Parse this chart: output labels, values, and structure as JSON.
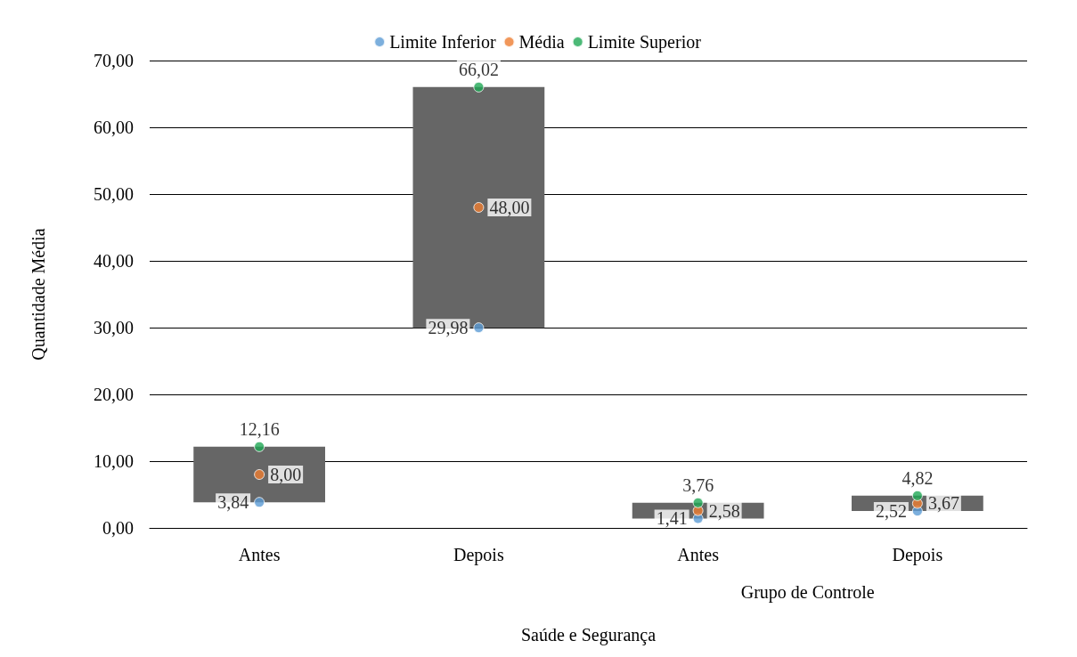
{
  "chart_data": {
    "type": "bar",
    "categories": [
      "Antes",
      "Depois",
      "Antes",
      "Depois"
    ],
    "ylabel": "Quantidade Média",
    "xlabel": "Saúde e Segurança",
    "annotations": [
      "Grupo de Controle"
    ],
    "ylim": [
      0,
      70
    ],
    "yticks": [
      {
        "value": 0,
        "label": "0,00"
      },
      {
        "value": 10,
        "label": "10,00"
      },
      {
        "value": 20,
        "label": "20,00"
      },
      {
        "value": 30,
        "label": "30,00"
      },
      {
        "value": 40,
        "label": "40,00"
      },
      {
        "value": 50,
        "label": "50,00"
      },
      {
        "value": 60,
        "label": "60,00"
      },
      {
        "value": 70,
        "label": "70,00"
      }
    ],
    "grid": "y",
    "legend": "top",
    "marker": "circle",
    "series": [
      {
        "color": "#666666",
        "base": [
          3.84,
          29.98,
          1.41,
          2.52
        ],
        "values": [
          8.32,
          36.04,
          2.35,
          2.3
        ]
      },
      {
        "type": "scatter",
        "name": "Limite Inferior",
        "color": "#5b9bd5",
        "values": [
          3.84,
          29.98,
          1.41,
          2.52
        ],
        "value_labels": [
          "3,84",
          "29,98",
          "1,41",
          "2,52"
        ]
      },
      {
        "type": "scatter",
        "name": "Média",
        "color": "#ed7d31",
        "values": [
          8.0,
          48.0,
          2.58,
          3.67
        ],
        "value_labels": [
          "8,00",
          "48,00",
          "2,58",
          "3,67"
        ]
      },
      {
        "type": "scatter",
        "name": "Limite Superior",
        "color": "#1fa855",
        "values": [
          12.16,
          66.02,
          3.76,
          4.82
        ],
        "value_labels": [
          "12,16",
          "66,02",
          "3,76",
          "4,82"
        ]
      }
    ]
  }
}
